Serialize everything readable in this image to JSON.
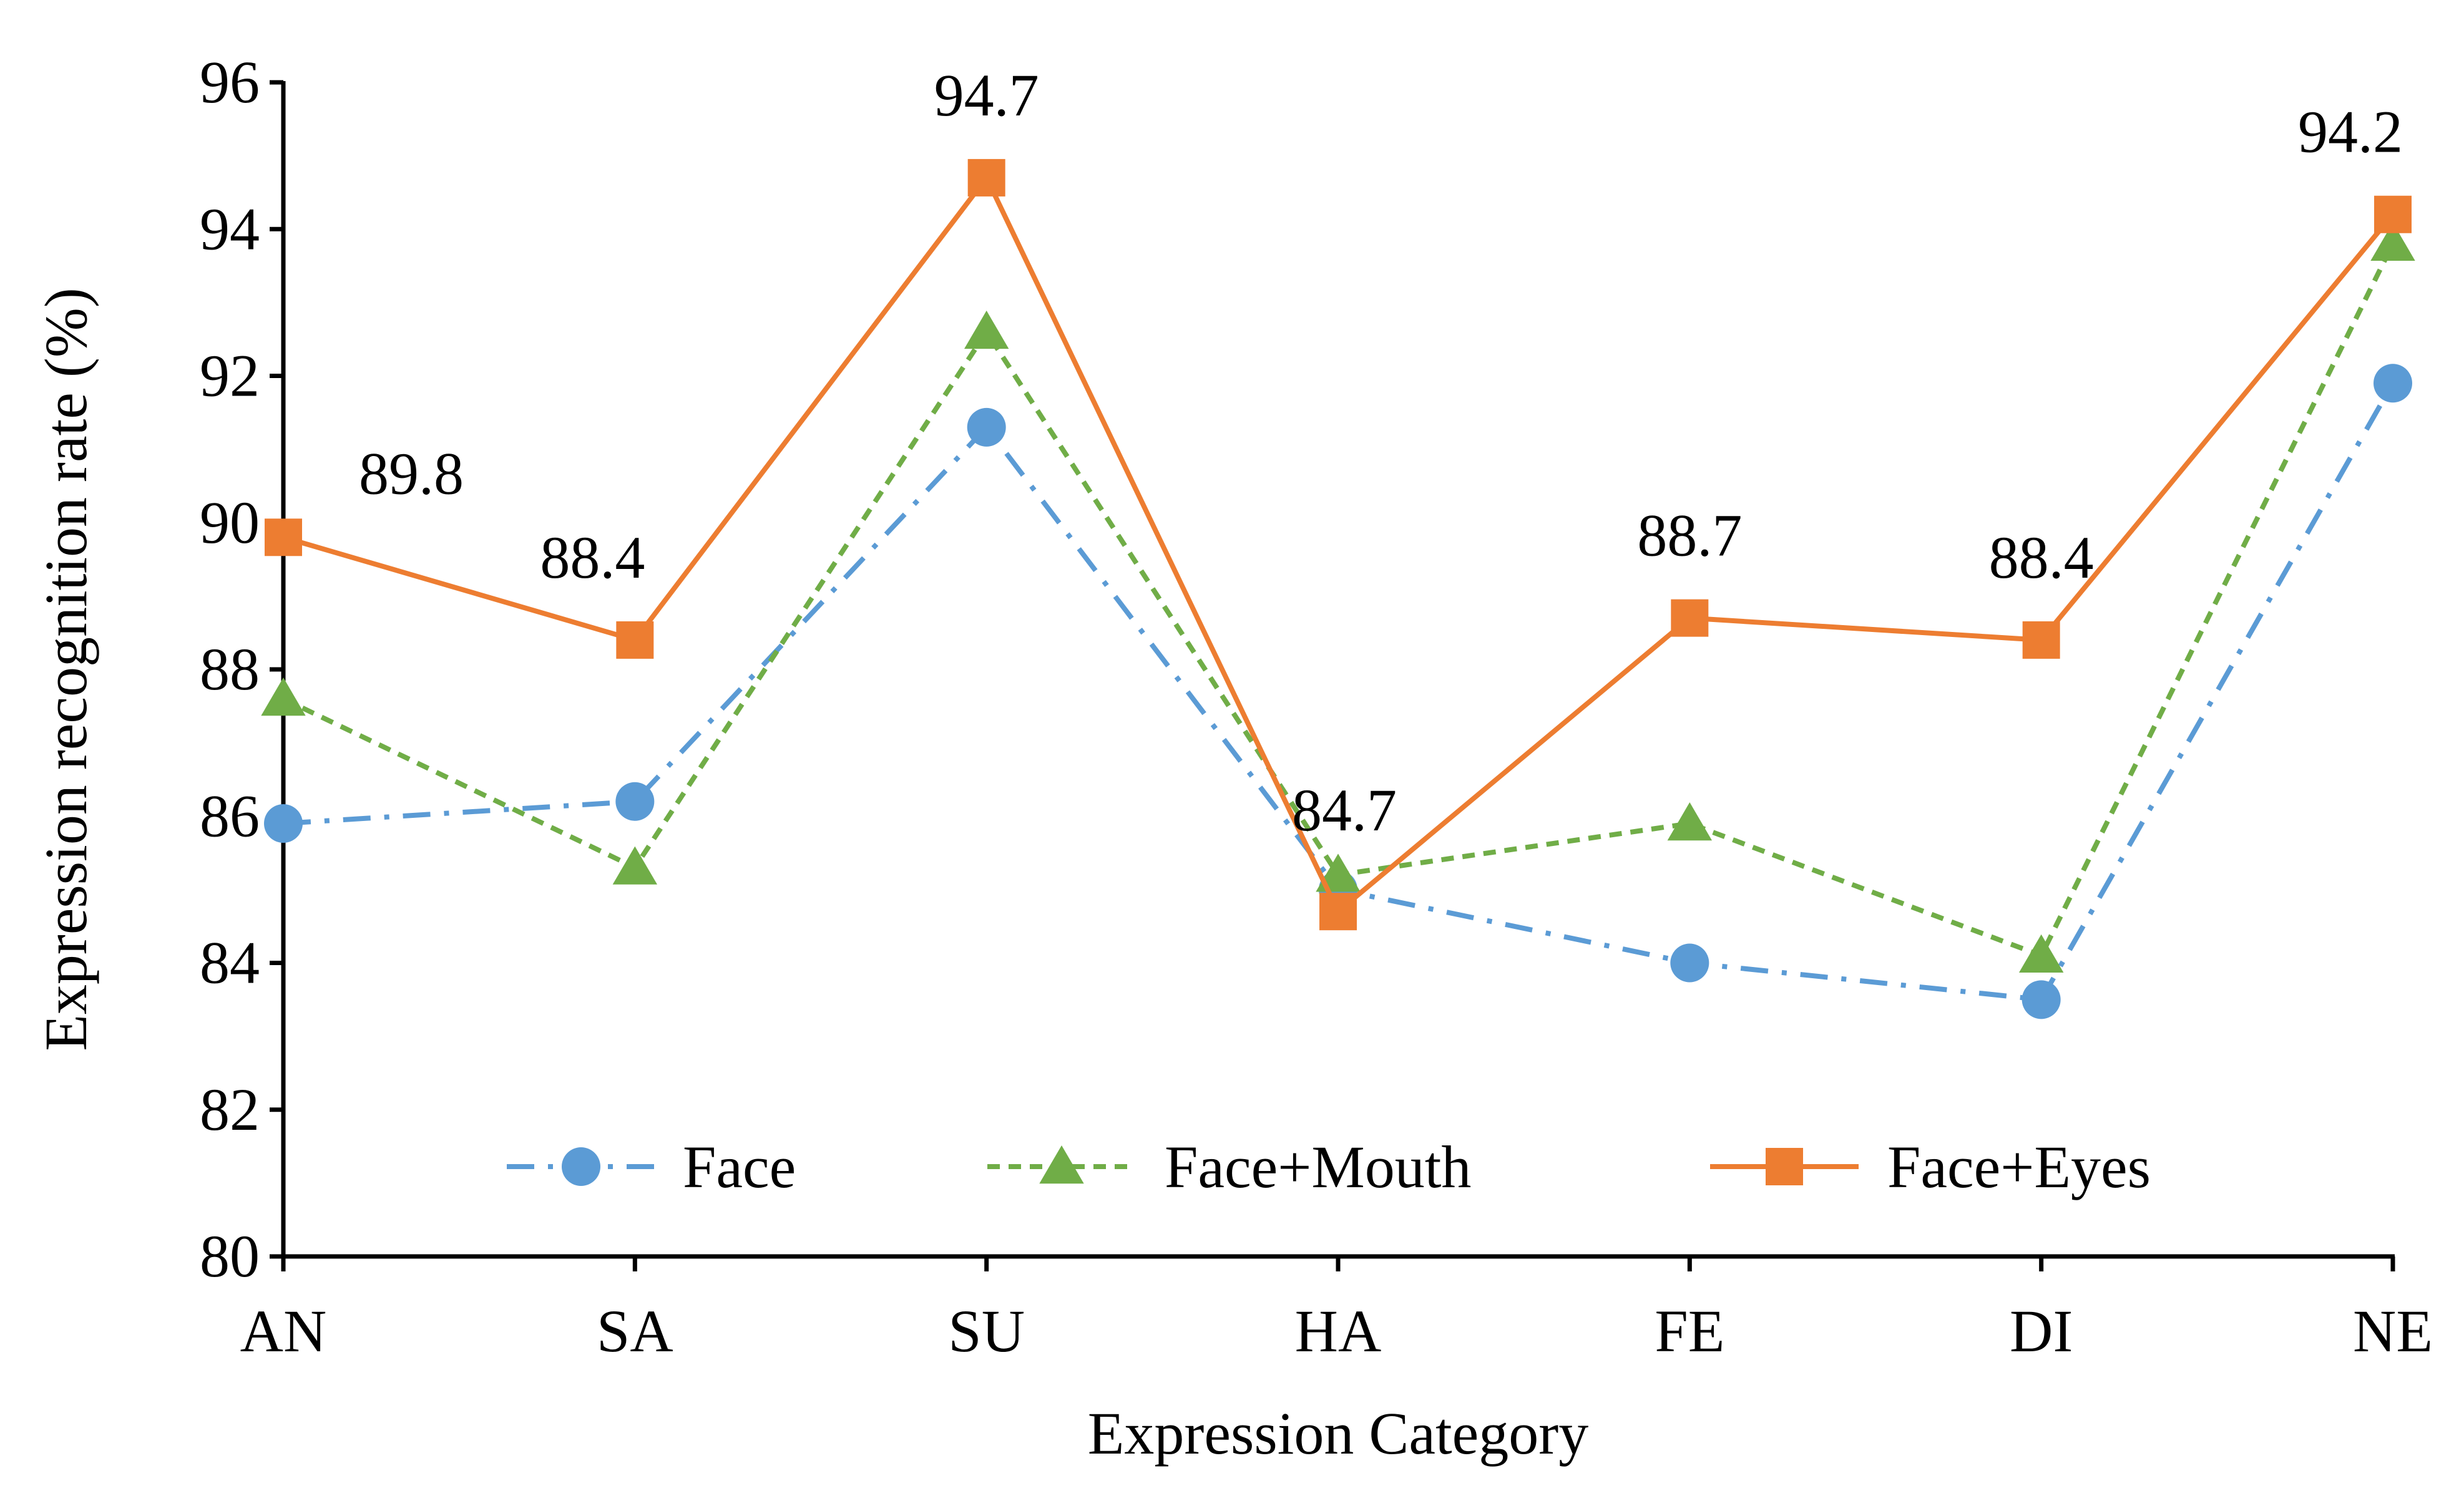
{
  "chart_data": {
    "type": "line",
    "xlabel": "Expression Category",
    "ylabel": "Expression recognition rate (%)",
    "categories": [
      "AN",
      "SA",
      "SU",
      "HA",
      "FE",
      "DI",
      "NE"
    ],
    "ylim": [
      80,
      96
    ],
    "yticks": [
      80,
      82,
      84,
      86,
      88,
      90,
      92,
      94,
      96
    ],
    "ytick_labels": [
      "80",
      "82",
      "84",
      "86",
      "88",
      "90",
      "92",
      "94",
      "96"
    ],
    "grid": false,
    "legend_position": "bottom-center",
    "series": [
      {
        "name": "Face",
        "values": [
          85.9,
          86.2,
          91.3,
          85.0,
          84.0,
          83.5,
          91.9
        ],
        "color": "#5B9BD5",
        "marker": "circle",
        "line_style": "dash-dot"
      },
      {
        "name": "Face+Mouth",
        "values": [
          87.6,
          85.3,
          92.6,
          85.2,
          85.9,
          84.1,
          93.8
        ],
        "color": "#70AD47",
        "marker": "triangle",
        "line_style": "dashed"
      },
      {
        "name": "Face+Eyes",
        "values": [
          89.8,
          88.4,
          94.7,
          84.7,
          88.7,
          88.4,
          94.2
        ],
        "color": "#ED7D31",
        "marker": "square",
        "line_style": "solid"
      }
    ],
    "data_labels": {
      "series": "Face+Eyes",
      "texts": [
        "89.8",
        "88.4",
        "94.7",
        "84.7",
        "88.7",
        "88.4",
        "94.2"
      ]
    }
  }
}
